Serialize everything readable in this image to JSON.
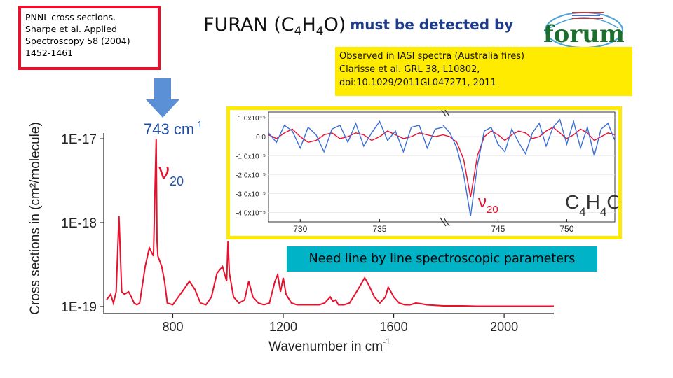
{
  "reference_box": {
    "lines": [
      "PNNL cross sections.",
      "Sharpe et al. Applied",
      "Spectroscopy 58 (2004)",
      "1452-1461"
    ]
  },
  "title": {
    "main_prefix": "FURAN (C",
    "sub1": "4",
    "mid": "H",
    "sub2": "4",
    "main_suffix": "O)",
    "must": "must be detected by"
  },
  "logo": {
    "text": "forum"
  },
  "iasi_note": {
    "lines": [
      "Observed in IASI spectra  (Australia fires)",
      "Clarisse et al. GRL 38, L10802,",
      "doi:10.1029/2011GL047271, 2011"
    ]
  },
  "need_note": "Need line by line spectroscopic parameters",
  "colors": {
    "ref_border": "#e8112d",
    "yellow": "#ffeb00",
    "cyan": "#00b3c7",
    "spectrum_red": "#e8112d",
    "arrow_blue": "#5b8fd6",
    "title_blue": "#1f3c88"
  },
  "chart_data": [
    {
      "type": "line",
      "title": "",
      "xlabel": "Wavenumber in cm",
      "xlabel_sup": "-1",
      "ylabel": "Cross sections in (cm²/molecule)",
      "x_ticks": [
        "800",
        "1200",
        "1600",
        "2000"
      ],
      "x_tick_values": [
        800,
        1200,
        1600,
        2000
      ],
      "y_ticks": [
        "1E-17",
        "1E-18",
        "1E-19"
      ],
      "xlim": [
        550,
        2180
      ],
      "ylim": [
        1e-19,
        1e-17
      ],
      "y_scale": "log",
      "annotation_band": "743 cm",
      "annotation_band_sup": "-1",
      "annotation_mode": "ν",
      "annotation_mode_sub": "20",
      "series": [
        {
          "x": [
            560,
            575,
            585,
            595,
            605,
            615,
            625,
            640,
            650,
            660,
            670,
            680,
            700,
            715,
            730,
            740,
            743,
            746,
            760,
            770,
            780,
            800,
            820,
            840,
            860,
            880,
            900,
            920,
            940,
            960,
            980,
            995,
            1000,
            1005,
            1020,
            1040,
            1060,
            1075,
            1090,
            1110,
            1130,
            1150,
            1170,
            1180,
            1190,
            1200,
            1210,
            1230,
            1250,
            1270,
            1290,
            1310,
            1330,
            1350,
            1370,
            1380,
            1390,
            1400,
            1420,
            1440,
            1460,
            1480,
            1495,
            1510,
            1530,
            1550,
            1570,
            1580,
            1590,
            1600,
            1620,
            1640,
            1660,
            1680,
            1700,
            1720,
            1740,
            1760,
            1780,
            1800,
            1850,
            1900,
            1950,
            2000,
            2050,
            2100,
            2150,
            2180
          ],
          "y": [
            1.2e-19,
            1.4e-19,
            1.1e-19,
            1.5e-19,
            1.2e-18,
            1.5e-19,
            1.4e-19,
            1.5e-19,
            1.3e-19,
            1.1e-19,
            1.05e-19,
            1.1e-19,
            3e-19,
            5e-19,
            4e-19,
            1e-17,
            6e-19,
            4e-19,
            3e-19,
            2e-19,
            1.1e-19,
            1.05e-19,
            1.3e-19,
            1.6e-19,
            2e-19,
            1.6e-19,
            1.1e-19,
            1.05e-19,
            1.3e-19,
            2.5e-19,
            3e-19,
            2e-19,
            6e-19,
            2.5e-19,
            1.3e-19,
            1.1e-19,
            1.2e-19,
            2e-19,
            1.3e-19,
            1.1e-19,
            1.05e-19,
            1.1e-19,
            2e-19,
            2.4e-19,
            1.5e-19,
            2.2e-19,
            1.4e-19,
            1.1e-19,
            1.05e-19,
            1.05e-19,
            1.05e-19,
            1.05e-19,
            1.05e-19,
            1.1e-19,
            1.3e-19,
            1.15e-19,
            1.2e-19,
            1.05e-19,
            1.05e-19,
            1.1e-19,
            1.4e-19,
            1.8e-19,
            2.2e-19,
            1.8e-19,
            1.3e-19,
            1.1e-19,
            1.3e-19,
            1.7e-19,
            1.5e-19,
            1.3e-19,
            1.1e-19,
            1.05e-19,
            1.05e-19,
            1.1e-19,
            1.08e-19,
            1.05e-19,
            1.04e-19,
            1.03e-19,
            1.02e-19,
            1.02e-19,
            1.02e-19,
            1.01e-19,
            1.01e-19,
            1.01e-19,
            1.01e-19,
            1.01e-19,
            1.01e-19,
            1.01e-19
          ]
        }
      ]
    },
    {
      "type": "line",
      "title": "",
      "x_ticks": [
        "730",
        "735",
        "745",
        "750"
      ],
      "x_tick_values": [
        730,
        735,
        745,
        750
      ],
      "y_ticks": [
        "1.0x10⁻⁵",
        "0.0",
        "-1.0x10⁻⁵",
        "-2.0x10⁻⁵",
        "-3.0x10⁻⁵",
        "-4.0x10⁻⁵"
      ],
      "y_tick_values": [
        1e-05,
        0,
        -1e-05,
        -2e-05,
        -3e-05,
        -4e-05
      ],
      "ylim": [
        -4.5e-05,
        1.3e-05
      ],
      "annotation_mode": "ν",
      "annotation_mode_sub": "20",
      "molecule_label": "C",
      "molecule_sub1": "4",
      "molecule_mid": "H",
      "molecule_sub2": "4",
      "molecule_suffix": "O",
      "series": [
        {
          "name": "",
          "color": "#e8112d",
          "x": [
            728.0,
            728.5,
            729.0,
            729.5,
            730.0,
            730.5,
            731.0,
            731.5,
            732.0,
            732.5,
            733.0,
            733.5,
            734.0,
            734.5,
            735.0,
            735.5,
            736.0,
            736.5,
            737.0,
            737.5,
            738.0,
            738.5,
            739.0,
            741.0,
            741.5,
            742.0,
            742.5,
            743.0,
            743.5,
            744.0,
            744.5,
            745.0,
            745.5,
            746.0,
            746.5,
            747.0,
            747.5,
            748.0,
            748.5,
            749.0,
            749.5,
            750.0,
            750.5,
            751.0,
            751.5,
            752.0,
            752.5,
            753.0,
            753.5
          ],
          "y": [
            1e-06,
            -1e-06,
            2e-06,
            4e-06,
            0.0,
            -3e-06,
            -2e-06,
            1e-06,
            2e-06,
            -1e-06,
            0.0,
            2e-06,
            1e-06,
            -2e-06,
            0.0,
            3e-06,
            1e-06,
            -1e-06,
            0.0,
            2e-06,
            1e-06,
            0.0,
            1e-06,
            1e-06,
            0.0,
            -3e-06,
            -1.2e-05,
            -3.2e-05,
            -1e-05,
            0.0,
            3e-06,
            1e-06,
            -2e-06,
            1e-06,
            3e-06,
            2e-06,
            -1e-06,
            0.0,
            3e-06,
            5e-06,
            2e-06,
            -1e-06,
            1e-06,
            4e-06,
            2e-06,
            -2e-06,
            0.0,
            2e-06,
            1e-06
          ]
        },
        {
          "name": "",
          "color": "#3b6fd6",
          "x": [
            728.0,
            728.5,
            729.0,
            729.5,
            730.0,
            730.5,
            731.0,
            731.5,
            732.0,
            732.5,
            733.0,
            733.5,
            734.0,
            734.5,
            735.0,
            735.5,
            736.0,
            736.5,
            737.0,
            737.5,
            738.0,
            738.5,
            739.0,
            741.0,
            741.5,
            742.0,
            742.5,
            743.0,
            743.5,
            744.0,
            744.5,
            745.0,
            745.5,
            746.0,
            746.5,
            747.0,
            747.5,
            748.0,
            748.5,
            749.0,
            749.5,
            750.0,
            750.5,
            751.0,
            751.5,
            752.0,
            752.5,
            753.0,
            753.5
          ],
          "y": [
            2e-06,
            -3e-06,
            6e-06,
            3e-06,
            -6e-06,
            5e-06,
            1e-06,
            -8e-06,
            4e-06,
            6e-06,
            -3e-06,
            7e-06,
            -5e-06,
            2e-06,
            8e-06,
            -2e-06,
            3e-06,
            -8e-06,
            5e-06,
            6e-06,
            -6e-06,
            4e-06,
            5e-06,
            6e-06,
            2e-06,
            -6e-06,
            -2e-05,
            -4.2e-05,
            -1.5e-05,
            3e-06,
            5e-06,
            -4e-06,
            -8e-06,
            4e-06,
            -3e-06,
            -9e-06,
            2e-06,
            7e-06,
            -5e-06,
            5e-06,
            9e-06,
            -4e-06,
            8e-06,
            -6e-06,
            5e-06,
            -1e-05,
            4e-06,
            7e-06,
            -2e-06
          ]
        }
      ]
    }
  ]
}
